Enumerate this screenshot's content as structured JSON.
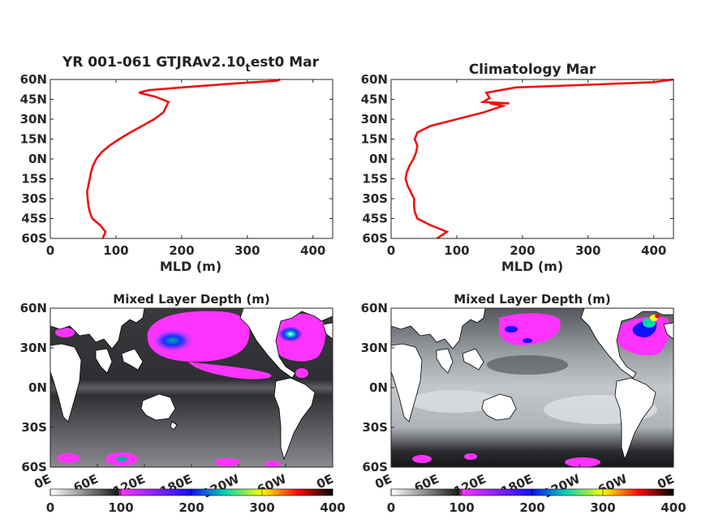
{
  "colors": {
    "profile_line": "#ee1111",
    "axis": "#262626",
    "land": "#ffffff",
    "colormap_stops": [
      "#ffffff",
      "#1a1a1a",
      "#ff33ff",
      "#1010ff",
      "#00d6b0",
      "#ffff00",
      "#ff0000",
      "#000000"
    ]
  },
  "chart_data": [
    {
      "type": "line",
      "title_main": "YR 001-061 GTJRAv2.10",
      "title_sub": "t",
      "title_tail": "est0 Mar",
      "xlabel": "MLD (m)",
      "ylabel": "",
      "xlim": [
        0,
        430
      ],
      "ylim": [
        -60,
        60
      ],
      "xticks": [
        0,
        100,
        200,
        300,
        400
      ],
      "ytick_labels": [
        "60N",
        "45N",
        "30N",
        "15N",
        "0N",
        "15S",
        "30S",
        "45S",
        "60S"
      ],
      "series": [
        {
          "x": [
            80,
            84,
            76,
            64,
            60,
            58,
            57,
            56,
            58,
            60,
            62,
            65,
            70,
            78,
            90,
            105,
            122,
            140,
            158,
            172,
            177,
            180,
            160,
            135,
            150,
            200,
            280,
            345,
            350
          ],
          "y": [
            -60,
            -55,
            -50,
            -45,
            -40,
            -35,
            -30,
            -25,
            -20,
            -15,
            -10,
            -5,
            0,
            5,
            10,
            15,
            20,
            25,
            30,
            35,
            40,
            43,
            47,
            50,
            52,
            54,
            57,
            59,
            60
          ]
        }
      ]
    },
    {
      "type": "line",
      "title": "Climatology Mar",
      "xlabel": "MLD (m)",
      "ylabel": "",
      "xlim": [
        0,
        430
      ],
      "ylim": [
        -60,
        60
      ],
      "xticks": [
        0,
        100,
        200,
        300,
        400
      ],
      "ytick_labels": [
        "60N",
        "45N",
        "30N",
        "15N",
        "0N",
        "15S",
        "30S",
        "45S",
        "60S"
      ],
      "series": [
        {
          "x": [
            70,
            85,
            60,
            40,
            36,
            35,
            35,
            30,
            25,
            22,
            24,
            28,
            34,
            38,
            40,
            36,
            40,
            60,
            100,
            140,
            170,
            150,
            180,
            140,
            150,
            145,
            190,
            300,
            400,
            430
          ],
          "y": [
            -60,
            -55,
            -50,
            -45,
            -40,
            -35,
            -30,
            -25,
            -20,
            -15,
            -10,
            -5,
            0,
            5,
            10,
            15,
            20,
            25,
            30,
            35,
            40,
            42,
            42,
            43,
            46,
            50,
            54,
            56,
            58,
            60
          ]
        }
      ]
    },
    {
      "type": "heatmap",
      "title": "Mixed Layer Depth (m)",
      "xtick_labels": [
        "0E",
        "60E",
        "120E",
        "180E",
        "120W",
        "60W",
        "0E"
      ],
      "ytick_labels": [
        "60N",
        "30N",
        "0N",
        "30S",
        "60S"
      ],
      "colorbar_ticks": [
        "0",
        "100",
        "200",
        "300",
        "400"
      ],
      "clim": [
        0,
        400
      ]
    },
    {
      "type": "heatmap",
      "title": "Mixed Layer Depth (m)",
      "xtick_labels": [
        "0E",
        "60E",
        "120E",
        "180E",
        "120W",
        "60W",
        "0E"
      ],
      "ytick_labels": [
        "60N",
        "30N",
        "0N",
        "30S",
        "60S"
      ],
      "colorbar_ticks": [
        "0",
        "100",
        "200",
        "300",
        "400"
      ],
      "clim": [
        0,
        400
      ]
    }
  ]
}
